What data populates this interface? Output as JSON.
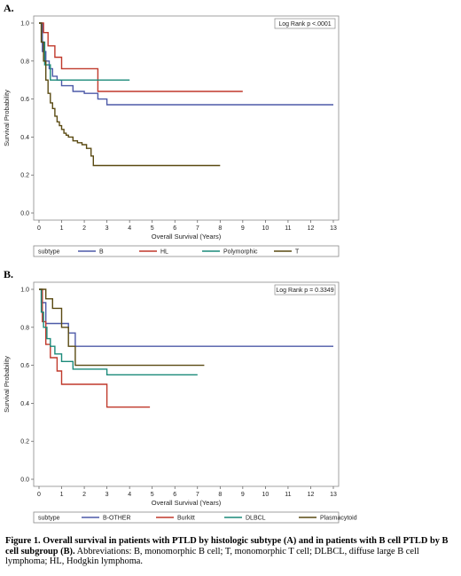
{
  "panels": [
    {
      "letter": "A.",
      "pvalue": "Log Rank p <.0001",
      "legend_title": "subtype",
      "chart_data": {
        "type": "line",
        "title": "",
        "xlabel": "Overall Survival (Years)",
        "ylabel": "Survival Probability",
        "xlim": [
          0,
          13
        ],
        "ylim": [
          0,
          1.0
        ],
        "x_ticks": [
          "0",
          "1",
          "2",
          "3",
          "4",
          "5",
          "6",
          "7",
          "8",
          "9",
          "10",
          "11",
          "12",
          "13"
        ],
        "y_ticks": [
          "0.0",
          "0.2",
          "0.4",
          "0.6",
          "0.8",
          "1.0"
        ],
        "grid": false,
        "legend_position": "bottom",
        "series": [
          {
            "name": "B",
            "color": "#4d5aa8",
            "x": [
              0,
              0.15,
              0.3,
              0.45,
              0.6,
              0.8,
              1.0,
              1.5,
              2.0,
              2.6,
              3.0,
              13
            ],
            "y": [
              1.0,
              0.85,
              0.8,
              0.76,
              0.72,
              0.7,
              0.67,
              0.64,
              0.63,
              0.6,
              0.57,
              0.57
            ]
          },
          {
            "name": "HL",
            "color": "#c0392b",
            "x": [
              0,
              0.2,
              0.4,
              0.7,
              1.0,
              2.6,
              9
            ],
            "y": [
              1.0,
              0.95,
              0.88,
              0.82,
              0.76,
              0.64,
              0.64
            ]
          },
          {
            "name": "Polymorphic",
            "color": "#1b8a7a",
            "x": [
              0,
              0.1,
              0.25,
              0.5,
              4
            ],
            "y": [
              1.0,
              0.9,
              0.78,
              0.7,
              0.7
            ]
          },
          {
            "name": "T",
            "color": "#5a4a12",
            "x": [
              0,
              0.1,
              0.2,
              0.3,
              0.4,
              0.5,
              0.6,
              0.7,
              0.8,
              0.9,
              1.0,
              1.1,
              1.2,
              1.3,
              1.5,
              1.7,
              1.9,
              2.1,
              2.3,
              2.4,
              8
            ],
            "y": [
              1.0,
              0.9,
              0.8,
              0.7,
              0.63,
              0.58,
              0.55,
              0.51,
              0.48,
              0.46,
              0.44,
              0.42,
              0.41,
              0.4,
              0.38,
              0.37,
              0.36,
              0.34,
              0.3,
              0.25,
              0.25
            ]
          }
        ]
      }
    },
    {
      "letter": "B.",
      "pvalue": "Log Rank p = 0.3349",
      "legend_title": "subtype",
      "chart_data": {
        "type": "line",
        "title": "",
        "xlabel": "Overall Survival (Years)",
        "ylabel": "Survival Probability",
        "xlim": [
          0,
          13
        ],
        "ylim": [
          0,
          1.0
        ],
        "x_ticks": [
          "0",
          "1",
          "2",
          "3",
          "4",
          "5",
          "6",
          "7",
          "8",
          "9",
          "10",
          "11",
          "12",
          "13"
        ],
        "y_ticks": [
          "0.0",
          "0.2",
          "0.4",
          "0.6",
          "0.8",
          "1.0"
        ],
        "grid": false,
        "legend_position": "bottom",
        "series": [
          {
            "name": "B-OTHER",
            "color": "#4d5aa8",
            "x": [
              0,
              0.1,
              0.3,
              1.0,
              1.3,
              1.6,
              13
            ],
            "y": [
              1.0,
              0.93,
              0.82,
              0.82,
              0.77,
              0.7,
              0.7
            ]
          },
          {
            "name": "Burkitt",
            "color": "#c0392b",
            "x": [
              0,
              0.15,
              0.3,
              0.5,
              0.8,
              1.0,
              3.0,
              4.9
            ],
            "y": [
              1.0,
              0.83,
              0.71,
              0.64,
              0.57,
              0.5,
              0.38,
              0.38
            ]
          },
          {
            "name": "DLBCL",
            "color": "#1b8a7a",
            "x": [
              0,
              0.1,
              0.2,
              0.35,
              0.5,
              0.7,
              1.0,
              1.5,
              3.0,
              7.0
            ],
            "y": [
              1.0,
              0.88,
              0.8,
              0.74,
              0.7,
              0.66,
              0.62,
              0.58,
              0.55,
              0.55
            ]
          },
          {
            "name": "Plasmacytoid",
            "color": "#5a4a12",
            "x": [
              0,
              0.3,
              0.6,
              1.0,
              1.3,
              1.6,
              7.3
            ],
            "y": [
              1.0,
              0.95,
              0.9,
              0.8,
              0.7,
              0.6,
              0.6
            ]
          }
        ]
      }
    }
  ],
  "caption": {
    "bold": "Figure 1. Overall survival in patients with PTLD by histologic subtype (A) and in patients with B cell PTLD by B cell subgroup (B).",
    "normal": " Abbreviations: B, monomorphic B cell; T, monomorphic T cell; DLBCL, diffuse large B cell lymphoma; HL, Hodgkin lymphoma."
  }
}
